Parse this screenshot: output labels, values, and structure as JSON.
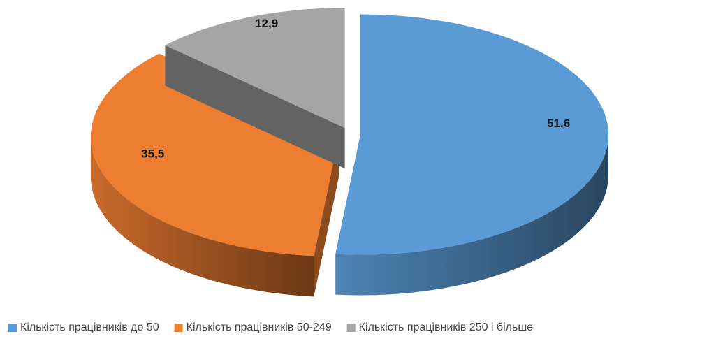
{
  "chart_data": {
    "type": "pie",
    "categories": [
      "Кількість працівників до 50",
      "Кількість працівників 50-249",
      "Кількість працівників 250 і більше"
    ],
    "values": [
      51.6,
      35.5,
      12.9
    ],
    "value_labels": [
      "51,6",
      "35,5",
      "12,9"
    ],
    "colors": [
      "#5b9bd5",
      "#ed7d31",
      "#a5a5a5"
    ],
    "legend": "bottom"
  }
}
